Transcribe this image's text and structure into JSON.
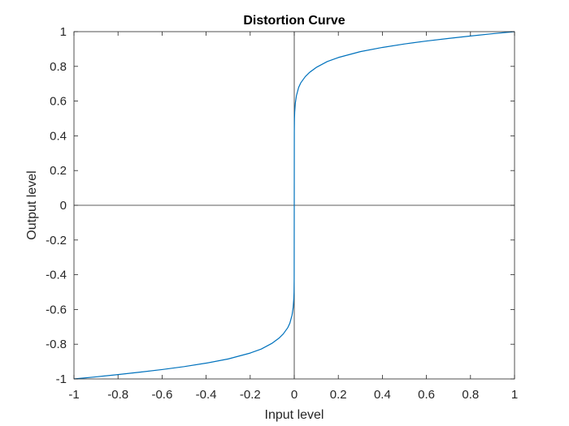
{
  "chart_data": {
    "type": "line",
    "title": "Distortion Curve",
    "xlabel": "Input level",
    "ylabel": "Output level",
    "xlim": [
      -1,
      1
    ],
    "ylim": [
      -1,
      1
    ],
    "xticks": [
      -1,
      -0.8,
      -0.6,
      -0.4,
      -0.2,
      0,
      0.2,
      0.4,
      0.6,
      0.8,
      1
    ],
    "yticks": [
      -1,
      -0.8,
      -0.6,
      -0.4,
      -0.2,
      0,
      0.2,
      0.4,
      0.6,
      0.8,
      1
    ],
    "xtick_labels": [
      "-1",
      "-0.8",
      "-0.6",
      "-0.4",
      "-0.2",
      "0",
      "0.2",
      "0.4",
      "0.6",
      "0.8",
      "1"
    ],
    "ytick_labels": [
      "-1",
      "-0.8",
      "-0.6",
      "-0.4",
      "-0.2",
      "0",
      "0.2",
      "0.4",
      "0.6",
      "0.8",
      "1"
    ],
    "grid": false,
    "reference_lines": [
      {
        "orientation": "vertical",
        "value": 0
      },
      {
        "orientation": "horizontal",
        "value": 0
      }
    ],
    "series": [
      {
        "color": "#0072BD",
        "x": [
          -1,
          -0.9,
          -0.8,
          -0.7,
          -0.6,
          -0.5,
          -0.4,
          -0.3,
          -0.2,
          -0.15,
          -0.1,
          -0.07,
          -0.05,
          -0.03,
          -0.02,
          -0.01,
          -0.005,
          -0.002,
          -0.001,
          -0.0003,
          0,
          0.0003,
          0.001,
          0.002,
          0.005,
          0.01,
          0.02,
          0.03,
          0.05,
          0.07,
          0.1,
          0.15,
          0.2,
          0.3,
          0.4,
          0.5,
          0.6,
          0.7,
          0.8,
          0.9,
          1
        ],
        "y": [
          -1,
          -0.988,
          -0.975,
          -0.961,
          -0.946,
          -0.929,
          -0.909,
          -0.885,
          -0.851,
          -0.828,
          -0.794,
          -0.766,
          -0.741,
          -0.706,
          -0.679,
          -0.632,
          -0.589,
          -0.537,
          -0.5,
          -0.421,
          0,
          0.421,
          0.5,
          0.537,
          0.589,
          0.632,
          0.679,
          0.706,
          0.741,
          0.766,
          0.794,
          0.828,
          0.851,
          0.885,
          0.909,
          0.929,
          0.946,
          0.961,
          0.975,
          0.988,
          1
        ]
      }
    ]
  }
}
